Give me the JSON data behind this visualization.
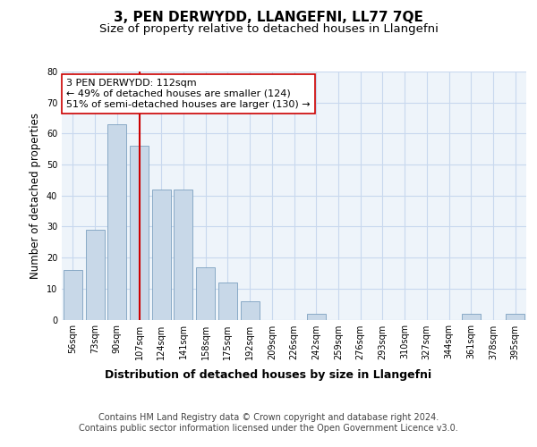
{
  "title": "3, PEN DERWYDD, LLANGEFNI, LL77 7QE",
  "subtitle": "Size of property relative to detached houses in Llangefni",
  "xlabel": "Distribution of detached houses by size in Llangefni",
  "ylabel": "Number of detached properties",
  "categories": [
    "56sqm",
    "73sqm",
    "90sqm",
    "107sqm",
    "124sqm",
    "141sqm",
    "158sqm",
    "175sqm",
    "192sqm",
    "209sqm",
    "226sqm",
    "242sqm",
    "259sqm",
    "276sqm",
    "293sqm",
    "310sqm",
    "327sqm",
    "344sqm",
    "361sqm",
    "378sqm",
    "395sqm"
  ],
  "values": [
    16,
    29,
    63,
    56,
    42,
    42,
    17,
    12,
    6,
    0,
    0,
    2,
    0,
    0,
    0,
    0,
    0,
    0,
    2,
    0,
    2
  ],
  "bar_color": "#c8d8e8",
  "bar_edge_color": "#7ca0c0",
  "vline_x_index": 3,
  "vline_color": "#cc0000",
  "annotation_text": "3 PEN DERWYDD: 112sqm\n← 49% of detached houses are smaller (124)\n51% of semi-detached houses are larger (130) →",
  "annotation_box_color": "#ffffff",
  "annotation_box_edge": "#cc0000",
  "ylim": [
    0,
    80
  ],
  "yticks": [
    0,
    10,
    20,
    30,
    40,
    50,
    60,
    70,
    80
  ],
  "grid_color": "#c8d8ee",
  "bg_color": "#eef4fa",
  "footer": "Contains HM Land Registry data © Crown copyright and database right 2024.\nContains public sector information licensed under the Open Government Licence v3.0.",
  "title_fontsize": 11,
  "subtitle_fontsize": 9.5,
  "xlabel_fontsize": 9,
  "ylabel_fontsize": 8.5,
  "tick_fontsize": 7,
  "footer_fontsize": 7,
  "annot_fontsize": 8
}
